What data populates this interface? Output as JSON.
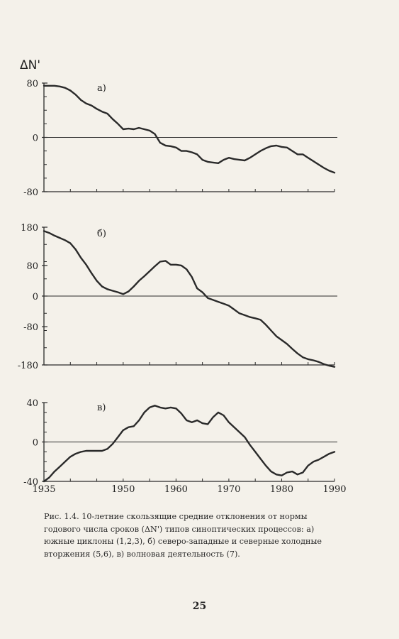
{
  "y_title": "ΔN'",
  "chart_data": [
    {
      "type": "line",
      "panel_label": "а)",
      "xlim": [
        1935,
        1990
      ],
      "ylim": [
        -80,
        80
      ],
      "yticks": [
        80,
        0,
        -80
      ],
      "ytick_labels": [
        "80",
        "0",
        "-80"
      ],
      "zero_line": true,
      "x": [
        1935,
        1936,
        1937,
        1938,
        1939,
        1940,
        1941,
        1942,
        1943,
        1944,
        1945,
        1946,
        1947,
        1948,
        1949,
        1950,
        1951,
        1952,
        1953,
        1954,
        1955,
        1956,
        1957,
        1958,
        1959,
        1960,
        1961,
        1962,
        1963,
        1964,
        1965,
        1966,
        1967,
        1968,
        1969,
        1970,
        1971,
        1972,
        1973,
        1974,
        1975,
        1976,
        1977,
        1978,
        1979,
        1980,
        1981,
        1982,
        1983,
        1984,
        1985,
        1986,
        1987,
        1988,
        1989,
        1990
      ],
      "values": [
        76,
        76,
        76,
        75,
        73,
        69,
        63,
        55,
        50,
        47,
        42,
        38,
        35,
        27,
        20,
        12,
        13,
        12,
        14,
        12,
        10,
        5,
        -8,
        -12,
        -13,
        -15,
        -20,
        -20,
        -22,
        -25,
        -33,
        -36,
        -37,
        -38,
        -33,
        -30,
        -32,
        -33,
        -34,
        -30,
        -25,
        -20,
        -16,
        -13,
        -12,
        -14,
        -15,
        -20,
        -25,
        -25,
        -30,
        -35,
        -40,
        -45,
        -49,
        -52
      ]
    },
    {
      "type": "line",
      "panel_label": "б)",
      "xlim": [
        1935,
        1990
      ],
      "ylim": [
        -180,
        180
      ],
      "yticks": [
        180,
        80,
        0,
        -80,
        -180
      ],
      "ytick_labels": [
        "180",
        "80",
        "0",
        "-80",
        "-180"
      ],
      "zero_line": true,
      "x": [
        1935,
        1936,
        1937,
        1938,
        1939,
        1940,
        1941,
        1942,
        1943,
        1944,
        1945,
        1946,
        1947,
        1948,
        1949,
        1950,
        1951,
        1952,
        1953,
        1954,
        1955,
        1956,
        1957,
        1958,
        1959,
        1960,
        1961,
        1962,
        1963,
        1964,
        1965,
        1966,
        1967,
        1968,
        1969,
        1970,
        1971,
        1972,
        1973,
        1974,
        1975,
        1976,
        1977,
        1978,
        1979,
        1980,
        1981,
        1982,
        1983,
        1984,
        1985,
        1986,
        1987,
        1988,
        1989,
        1990
      ],
      "values": [
        170,
        165,
        158,
        152,
        146,
        138,
        122,
        100,
        82,
        60,
        40,
        25,
        18,
        14,
        10,
        5,
        12,
        25,
        40,
        52,
        65,
        78,
        90,
        92,
        82,
        82,
        80,
        70,
        50,
        20,
        10,
        -5,
        -10,
        -15,
        -20,
        -25,
        -35,
        -45,
        -50,
        -55,
        -58,
        -62,
        -75,
        -90,
        -105,
        -115,
        -125,
        -138,
        -150,
        -160,
        -165,
        -168,
        -172,
        -178,
        -182,
        -185
      ]
    },
    {
      "type": "line",
      "panel_label": "в)",
      "xlim": [
        1935,
        1990
      ],
      "ylim": [
        -40,
        40
      ],
      "yticks": [
        40,
        0,
        -40
      ],
      "ytick_labels": [
        "40",
        "0",
        "-40"
      ],
      "xticks": [
        1935,
        1950,
        1960,
        1970,
        1980,
        1990
      ],
      "xtick_labels": [
        "1935",
        "1950",
        "1960",
        "1970",
        "1980",
        "1990"
      ],
      "zero_line": true,
      "x": [
        1935,
        1936,
        1937,
        1938,
        1939,
        1940,
        1941,
        1942,
        1943,
        1944,
        1945,
        1946,
        1947,
        1948,
        1949,
        1950,
        1951,
        1952,
        1953,
        1954,
        1955,
        1956,
        1957,
        1958,
        1959,
        1960,
        1961,
        1962,
        1963,
        1964,
        1965,
        1966,
        1967,
        1968,
        1969,
        1970,
        1971,
        1972,
        1973,
        1974,
        1975,
        1976,
        1977,
        1978,
        1979,
        1980,
        1981,
        1982,
        1983,
        1984,
        1985,
        1986,
        1987,
        1988,
        1989,
        1990
      ],
      "values": [
        -40,
        -36,
        -30,
        -25,
        -20,
        -15,
        -12,
        -10,
        -9,
        -9,
        -9,
        -9,
        -7,
        -2,
        5,
        12,
        15,
        16,
        22,
        30,
        35,
        37,
        35,
        34,
        35,
        34,
        29,
        22,
        20,
        22,
        19,
        18,
        25,
        30,
        27,
        20,
        15,
        10,
        5,
        -3,
        -10,
        -17,
        -24,
        -30,
        -33,
        -34,
        -31,
        -30,
        -33,
        -31,
        -24,
        -20,
        -18,
        -15,
        -12,
        -10
      ]
    }
  ],
  "caption": "Рис. 1.4. 10-летние скользящие средние отклонения от нормы годового числа сроков (ΔN') типов синоптических процессов: а)  южные циклоны (1,2,3), б)  северо-западные и северные холодные вторжения (5,6), в)  волновая деятельность (7).",
  "page_number": "25",
  "colors": {
    "ink": "#2a2a2a",
    "paper": "#f4f1ea"
  }
}
